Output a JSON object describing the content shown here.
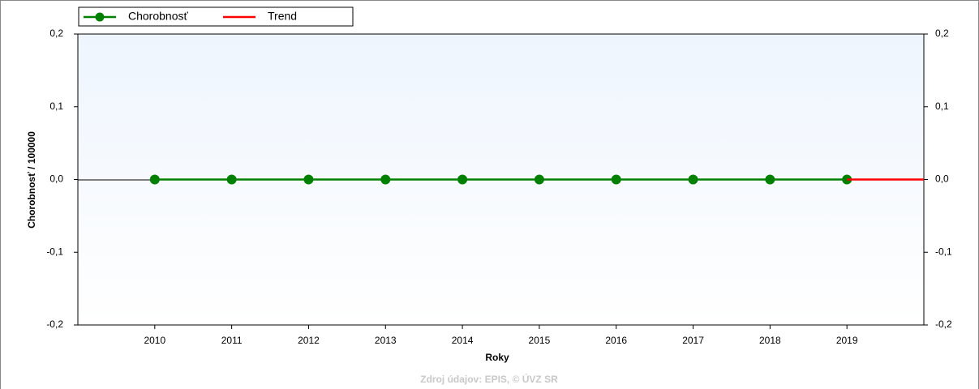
{
  "chart_data": {
    "type": "line",
    "x_label": "Roky",
    "y_label": "Chorobnosť / 100000",
    "source": "Zdroj údajov: EPIS, © ÚVZ SR",
    "xlim": [
      2009,
      2020
    ],
    "xticks": [
      2010,
      2011,
      2012,
      2013,
      2014,
      2015,
      2016,
      2017,
      2018,
      2019
    ],
    "ylim": [
      -0.2,
      0.2
    ],
    "yticks": [
      {
        "value": -0.2,
        "label": "-0,2"
      },
      {
        "value": -0.1,
        "label": "-0,1"
      },
      {
        "value": 0,
        "label": "0,0"
      },
      {
        "value": 0.1,
        "label": "0,1"
      },
      {
        "value": 0.2,
        "label": "0,2"
      }
    ],
    "y2lim": [
      -0.2,
      0.2
    ],
    "y2ticks": [
      {
        "value": -0.2,
        "label": "-0,2"
      },
      {
        "value": -0.1,
        "label": "-0,1"
      },
      {
        "value": 0,
        "label": "0,0"
      },
      {
        "value": 0.1,
        "label": "0,1"
      },
      {
        "value": 0.2,
        "label": "0,2"
      }
    ],
    "legend": "top-left",
    "series": [
      {
        "name": "Chorobnosť",
        "color": "#008000",
        "markers": true,
        "x": [
          2010,
          2011,
          2012,
          2013,
          2014,
          2015,
          2016,
          2017,
          2018,
          2019
        ],
        "values": [
          0,
          0,
          0,
          0,
          0,
          0,
          0,
          0,
          0,
          0
        ]
      },
      {
        "name": "Trend",
        "color": "#ff0000",
        "markers": false,
        "x": [
          2019,
          2020
        ],
        "values": [
          0,
          0
        ]
      }
    ]
  }
}
